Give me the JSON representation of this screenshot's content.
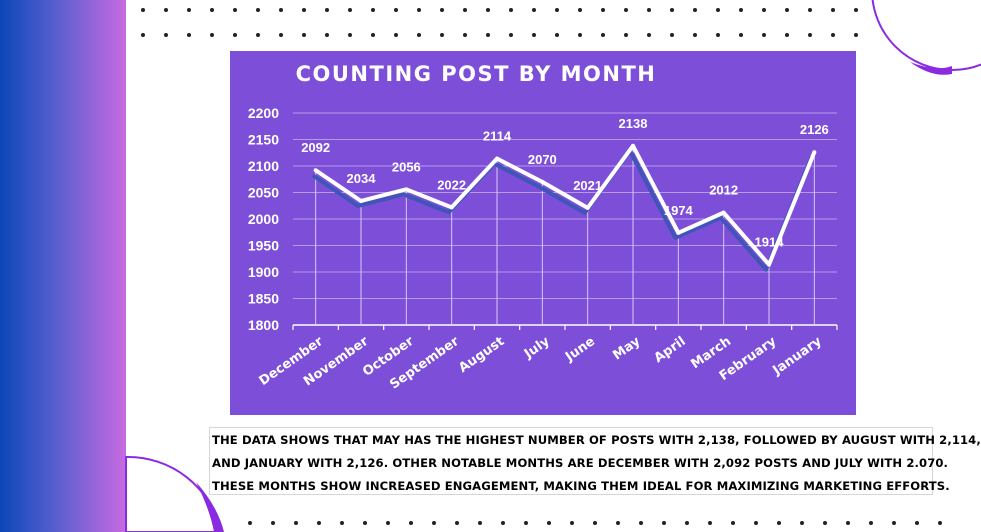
{
  "chart_data": {
    "type": "line",
    "title": "COUNTING  POST BY MONTH",
    "categories": [
      "December",
      "November",
      "October",
      "September",
      "August",
      "July",
      "June",
      "May",
      "April",
      "March",
      "February",
      "January"
    ],
    "values": [
      2092,
      2034,
      2056,
      2022,
      2114,
      2070,
      2021,
      2138,
      1974,
      2012,
      1914,
      2126
    ],
    "data_labels": [
      "2092",
      "2034",
      "2056",
      "2022",
      "2114",
      "2070",
      "2021",
      "2138",
      "1974",
      "2012",
      "1914",
      "2126"
    ],
    "y_ticks": [
      "2200",
      "2150",
      "2100",
      "2050",
      "2000",
      "1950",
      "1900",
      "1850",
      "1800"
    ],
    "ylim": [
      1800,
      2200
    ],
    "grid": true,
    "legend": "none",
    "background_color": "#7d4fd8",
    "line_color": "#ffffff"
  },
  "caption": {
    "line1": "The data shows that May has the highest number of posts with 2,138, followed by August with 2,114,",
    "line2": "and January with 2,126. Other notable months are December with 2,092 posts and July with 2.070.",
    "line3": "These months show increased engagement, making them ideal for maximizing marketing efforts."
  },
  "colors": {
    "left_band_start": "#0b47b8",
    "left_band_end": "#c86ae0",
    "accent_purple": "#8a2be2",
    "dot_color": "#222222"
  }
}
